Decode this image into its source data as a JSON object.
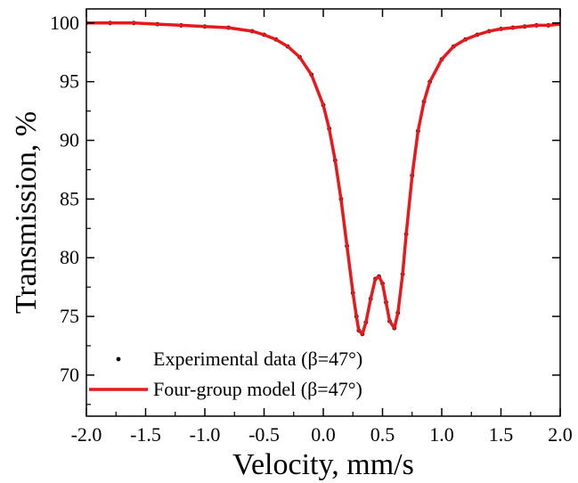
{
  "chart_data": {
    "type": "scatter",
    "title": "",
    "xlabel": "Velocity, mm/s",
    "ylabel": "Transmission, %",
    "xlim": [
      -2.0,
      2.0
    ],
    "ylim": [
      66.5,
      101.2
    ],
    "xticks": [
      -2.0,
      -1.5,
      -1.0,
      -0.5,
      0.0,
      0.5,
      1.0,
      1.5,
      2.0
    ],
    "xtick_labels": [
      "-2.0",
      "-1.5",
      "-1.0",
      "-0.5",
      "0.0",
      "0.5",
      "1.0",
      "1.5",
      "2.0"
    ],
    "yticks": [
      70,
      75,
      80,
      85,
      90,
      95,
      100
    ],
    "ytick_labels": [
      "70",
      "75",
      "80",
      "85",
      "90",
      "95",
      "100"
    ],
    "grid": false,
    "legend_position": "bottom-left",
    "series": [
      {
        "name": "Experimental data (β=47°)",
        "kind": "scatter",
        "color": "#000000",
        "x": [
          -2.0,
          -1.8,
          -1.6,
          -1.4,
          -1.2,
          -1.0,
          -0.8,
          -0.6,
          -0.5,
          -0.4,
          -0.3,
          -0.2,
          -0.1,
          0.0,
          0.05,
          0.1,
          0.15,
          0.2,
          0.25,
          0.28,
          0.3,
          0.33,
          0.36,
          0.4,
          0.44,
          0.47,
          0.5,
          0.53,
          0.56,
          0.6,
          0.63,
          0.67,
          0.7,
          0.75,
          0.8,
          0.85,
          0.9,
          1.0,
          1.1,
          1.2,
          1.3,
          1.4,
          1.5,
          1.6,
          1.7,
          1.8,
          1.9,
          2.0
        ],
        "y": [
          100.0,
          100.0,
          100.0,
          99.9,
          99.8,
          99.7,
          99.6,
          99.3,
          99.0,
          98.6,
          98.0,
          97.1,
          95.6,
          93.0,
          91.0,
          88.3,
          85.0,
          81.0,
          77.0,
          75.0,
          73.8,
          73.5,
          74.5,
          76.5,
          78.2,
          78.4,
          77.8,
          76.2,
          74.6,
          74.0,
          75.3,
          78.6,
          82.0,
          87.0,
          90.8,
          93.3,
          95.0,
          96.9,
          98.0,
          98.6,
          99.0,
          99.3,
          99.5,
          99.6,
          99.7,
          99.8,
          99.8,
          99.9
        ]
      },
      {
        "name": "Four-group model (β=47°)",
        "kind": "line",
        "color": "#e8191c",
        "x": [
          -2.0,
          -1.8,
          -1.6,
          -1.4,
          -1.2,
          -1.0,
          -0.8,
          -0.6,
          -0.5,
          -0.4,
          -0.3,
          -0.2,
          -0.1,
          0.0,
          0.05,
          0.1,
          0.15,
          0.2,
          0.25,
          0.28,
          0.3,
          0.33,
          0.36,
          0.4,
          0.44,
          0.47,
          0.5,
          0.53,
          0.56,
          0.6,
          0.63,
          0.67,
          0.7,
          0.75,
          0.8,
          0.85,
          0.9,
          1.0,
          1.1,
          1.2,
          1.3,
          1.4,
          1.5,
          1.6,
          1.7,
          1.8,
          1.9,
          2.0
        ],
        "y": [
          100.0,
          100.0,
          100.0,
          99.9,
          99.8,
          99.7,
          99.6,
          99.3,
          99.0,
          98.6,
          98.0,
          97.1,
          95.6,
          93.0,
          91.0,
          88.3,
          85.0,
          81.0,
          77.0,
          75.0,
          73.8,
          73.5,
          74.5,
          76.5,
          78.2,
          78.4,
          77.8,
          76.2,
          74.6,
          74.0,
          75.3,
          78.6,
          82.0,
          87.0,
          90.8,
          93.3,
          95.0,
          96.9,
          98.0,
          98.6,
          99.0,
          99.3,
          99.5,
          99.6,
          99.7,
          99.8,
          99.8,
          99.9
        ]
      }
    ]
  }
}
